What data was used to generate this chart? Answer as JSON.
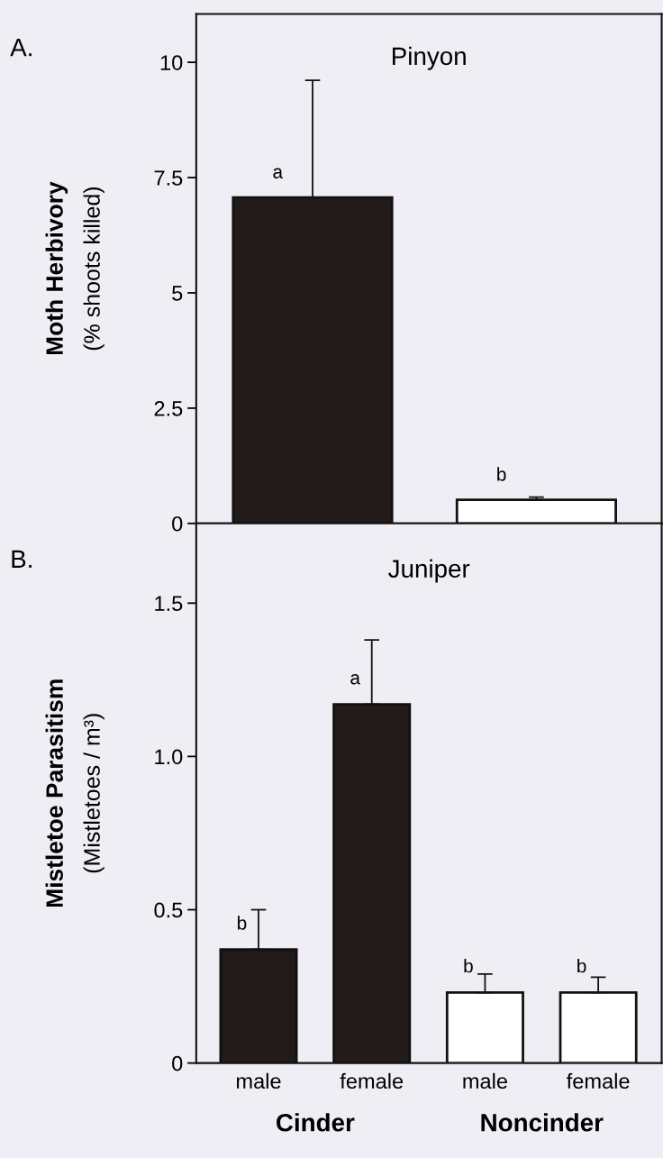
{
  "chart_data": [
    {
      "type": "bar",
      "title": "Pinyon",
      "ylabel": "Moth Herbivory\n(% shoots killed)",
      "categories": [
        null,
        null
      ],
      "values": [
        7.07,
        0.51
      ],
      "colors": [
        "#231a1a",
        "#ffffff"
      ],
      "errors": [
        [
          7.07,
          9.61
        ],
        [
          0.51,
          0.57
        ]
      ],
      "ylim": [
        0,
        11.05
      ],
      "yticks": [
        0,
        2.5,
        5,
        7.5,
        10
      ],
      "tick_labels": "y",
      "grid": false,
      "legend": false,
      "annotations": [
        "A.",
        "a",
        "b"
      ]
    },
    {
      "type": "bar",
      "title": "Juniper",
      "ylabel": "Mistletoe Parasitism\n(Mistletoes / m³)",
      "categories": [
        "male",
        "female",
        "male",
        "female"
      ],
      "values": [
        0.37,
        1.17,
        0.23,
        0.23
      ],
      "colors": [
        "#231a1a",
        "#231a1a",
        "#ffffff",
        "#ffffff"
      ],
      "errors": [
        [
          0.37,
          0.5
        ],
        [
          1.17,
          1.38
        ],
        [
          0.23,
          0.29
        ],
        [
          0.23,
          0.28
        ]
      ],
      "ylim": [
        0,
        1.76
      ],
      "yticks": [
        0,
        0.5,
        {
          "value": 1.0,
          "label": "1.0"
        },
        1.5
      ],
      "grid": false,
      "legend": false,
      "annotations": [
        "B.",
        "b",
        "a",
        "b",
        "b",
        "Cinder",
        "Noncinder"
      ]
    }
  ]
}
